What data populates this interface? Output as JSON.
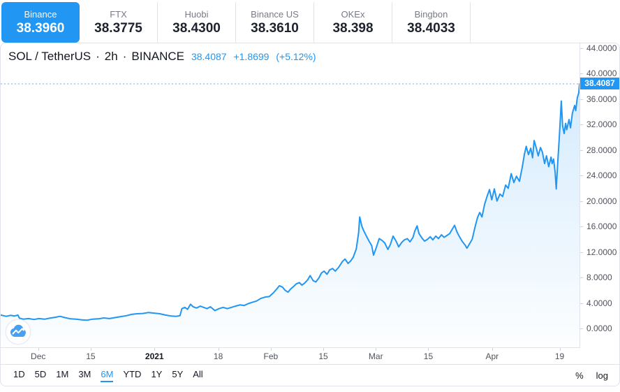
{
  "tabs": [
    {
      "name": "Binance",
      "value": "38.3960",
      "active": true
    },
    {
      "name": "FTX",
      "value": "38.3775",
      "active": false
    },
    {
      "name": "Huobi",
      "value": "38.4300",
      "active": false
    },
    {
      "name": "Binance US",
      "value": "38.3610",
      "active": false
    },
    {
      "name": "OKEx",
      "value": "38.398",
      "active": false
    },
    {
      "name": "Bingbon",
      "value": "38.4033",
      "active": false
    }
  ],
  "header": {
    "symbol": "SOL / TetherUS",
    "separator": "·",
    "interval": "2h",
    "exchange": "BINANCE",
    "price": "38.4087",
    "change": "+1.8699",
    "change_pct": "(+5.12%)"
  },
  "price_scale": {
    "badge": {
      "label": "38.4087",
      "price": 38.4087
    },
    "ticks": [
      {
        "label": "44.0000",
        "price": 44
      },
      {
        "label": "40.0000",
        "price": 40
      },
      {
        "label": "36.0000",
        "price": 36
      },
      {
        "label": "32.0000",
        "price": 32
      },
      {
        "label": "28.0000",
        "price": 28
      },
      {
        "label": "24.0000",
        "price": 24
      },
      {
        "label": "20.0000",
        "price": 20
      },
      {
        "label": "16.0000",
        "price": 16
      },
      {
        "label": "12.0000",
        "price": 12
      },
      {
        "label": "8.0000",
        "price": 8
      },
      {
        "label": "4.0000",
        "price": 4
      },
      {
        "label": "0.0000",
        "price": 0
      }
    ]
  },
  "time_scale": {
    "ticks": [
      {
        "label": "Dec",
        "day": 10,
        "bold": false
      },
      {
        "label": "15",
        "day": 24,
        "bold": false
      },
      {
        "label": "2021",
        "day": 41,
        "bold": true
      },
      {
        "label": "18",
        "day": 58,
        "bold": false
      },
      {
        "label": "Feb",
        "day": 72,
        "bold": false
      },
      {
        "label": "15",
        "day": 86,
        "bold": false
      },
      {
        "label": "Mar",
        "day": 100,
        "bold": false
      },
      {
        "label": "15",
        "day": 114,
        "bold": false
      },
      {
        "label": "Apr",
        "day": 131,
        "bold": false
      },
      {
        "label": "19",
        "day": 149,
        "bold": false
      }
    ]
  },
  "toolbar": {
    "ranges": [
      {
        "label": "1D",
        "active": false
      },
      {
        "label": "5D",
        "active": false
      },
      {
        "label": "1M",
        "active": false
      },
      {
        "label": "3M",
        "active": false
      },
      {
        "label": "6M",
        "active": true
      },
      {
        "label": "YTD",
        "active": false
      },
      {
        "label": "1Y",
        "active": false
      },
      {
        "label": "5Y",
        "active": false
      },
      {
        "label": "All",
        "active": false
      }
    ],
    "scale_modes": [
      "%",
      "log"
    ]
  },
  "colors": {
    "accent": "#2196f3",
    "line": "#2196f3",
    "fill_top": "rgba(33,150,243,0.20)",
    "fill_bottom": "rgba(33,150,243,0.01)",
    "dotted_price_line": "#6aabf2",
    "border": "#e0e3eb",
    "dark_text": "#131722",
    "gray_text": "#787b86",
    "axis_text": "#50535e"
  },
  "chart_data": {
    "type": "area",
    "title": "SOL / TetherUS · 2h · BINANCE",
    "x_unit": "days since 2020-11-21 (left edge of plot)",
    "x_range": [
      0,
      154.3
    ],
    "y_range": [
      0,
      44
    ],
    "grid": false,
    "last_price": 38.4087,
    "points": [
      [
        0,
        2.1
      ],
      [
        1.5,
        1.9
      ],
      [
        2.6,
        2.05
      ],
      [
        3.7,
        1.95
      ],
      [
        4.6,
        2.1
      ],
      [
        5,
        1.6
      ],
      [
        6.1,
        1.45
      ],
      [
        7.4,
        1.55
      ],
      [
        8.9,
        1.4
      ],
      [
        10.2,
        1.55
      ],
      [
        11.7,
        1.45
      ],
      [
        13,
        1.6
      ],
      [
        14.5,
        1.75
      ],
      [
        15.8,
        1.9
      ],
      [
        17.1,
        1.7
      ],
      [
        18.6,
        1.5
      ],
      [
        20.1,
        1.45
      ],
      [
        21.6,
        1.35
      ],
      [
        23,
        1.3
      ],
      [
        24.5,
        1.45
      ],
      [
        26,
        1.5
      ],
      [
        27.5,
        1.65
      ],
      [
        29,
        1.55
      ],
      [
        30.5,
        1.7
      ],
      [
        32,
        1.85
      ],
      [
        33.5,
        2.0
      ],
      [
        34.9,
        2.2
      ],
      [
        36.4,
        2.3
      ],
      [
        37.9,
        2.35
      ],
      [
        39.4,
        2.5
      ],
      [
        40.9,
        2.4
      ],
      [
        42.4,
        2.3
      ],
      [
        43.9,
        2.1
      ],
      [
        45.4,
        1.95
      ],
      [
        46.8,
        1.9
      ],
      [
        47.8,
        2.0
      ],
      [
        48.3,
        3.1
      ],
      [
        49.1,
        3.3
      ],
      [
        49.8,
        3.0
      ],
      [
        50.6,
        3.8
      ],
      [
        51.3,
        3.4
      ],
      [
        52.2,
        3.2
      ],
      [
        53.2,
        3.5
      ],
      [
        54.1,
        3.3
      ],
      [
        55,
        3.1
      ],
      [
        55.9,
        3.4
      ],
      [
        57.1,
        2.8
      ],
      [
        58.2,
        3.1
      ],
      [
        59.3,
        3.3
      ],
      [
        60.4,
        3.1
      ],
      [
        61.5,
        3.3
      ],
      [
        62.6,
        3.5
      ],
      [
        63.8,
        3.7
      ],
      [
        64.9,
        3.6
      ],
      [
        66,
        3.9
      ],
      [
        67.1,
        4.1
      ],
      [
        68.2,
        4.3
      ],
      [
        69.3,
        4.7
      ],
      [
        70.4,
        4.9
      ],
      [
        71.6,
        5.0
      ],
      [
        72.7,
        5.6
      ],
      [
        73.6,
        6.2
      ],
      [
        74.3,
        6.7
      ],
      [
        75.1,
        6.5
      ],
      [
        75.8,
        6.0
      ],
      [
        76.6,
        5.7
      ],
      [
        77.3,
        6.2
      ],
      [
        78.1,
        6.6
      ],
      [
        78.8,
        7.0
      ],
      [
        79.6,
        7.2
      ],
      [
        80.3,
        6.8
      ],
      [
        81,
        7.1
      ],
      [
        81.8,
        7.6
      ],
      [
        82.5,
        8.3
      ],
      [
        83.3,
        7.5
      ],
      [
        84,
        7.3
      ],
      [
        84.8,
        7.9
      ],
      [
        85.5,
        8.7
      ],
      [
        86.2,
        9.0
      ],
      [
        87,
        8.5
      ],
      [
        87.7,
        9.2
      ],
      [
        88.5,
        9.4
      ],
      [
        89.2,
        9.0
      ],
      [
        90.1,
        9.6
      ],
      [
        91.1,
        10.5
      ],
      [
        91.8,
        10.9
      ],
      [
        92.6,
        10.2
      ],
      [
        93.3,
        10.6
      ],
      [
        94,
        11.2
      ],
      [
        94.8,
        12.5
      ],
      [
        95.4,
        15.0
      ],
      [
        95.7,
        17.5
      ],
      [
        96.3,
        16.0
      ],
      [
        96.8,
        15.3
      ],
      [
        97.4,
        14.6
      ],
      [
        98.1,
        13.8
      ],
      [
        98.9,
        13.0
      ],
      [
        99.4,
        11.5
      ],
      [
        100.2,
        12.8
      ],
      [
        100.9,
        14.1
      ],
      [
        101.7,
        13.8
      ],
      [
        102.4,
        13.4
      ],
      [
        103.2,
        12.4
      ],
      [
        103.9,
        13.2
      ],
      [
        104.6,
        14.5
      ],
      [
        105.4,
        13.7
      ],
      [
        106.1,
        12.8
      ],
      [
        106.9,
        13.5
      ],
      [
        107.6,
        13.9
      ],
      [
        108.4,
        14.1
      ],
      [
        109.1,
        13.6
      ],
      [
        109.9,
        14.3
      ],
      [
        110.4,
        15.3
      ],
      [
        111,
        16.1
      ],
      [
        111.5,
        14.9
      ],
      [
        112.3,
        14.2
      ],
      [
        113,
        13.7
      ],
      [
        113.8,
        14.0
      ],
      [
        114.5,
        14.4
      ],
      [
        115.2,
        13.9
      ],
      [
        116,
        14.5
      ],
      [
        116.7,
        14.1
      ],
      [
        117.5,
        14.7
      ],
      [
        118.2,
        14.3
      ],
      [
        119,
        14.6
      ],
      [
        119.7,
        14.9
      ],
      [
        120.4,
        15.6
      ],
      [
        121,
        16.2
      ],
      [
        121.6,
        15.2
      ],
      [
        122.3,
        14.4
      ],
      [
        123,
        13.7
      ],
      [
        123.8,
        13.1
      ],
      [
        124.3,
        12.6
      ],
      [
        124.9,
        13.2
      ],
      [
        125.7,
        14.0
      ],
      [
        126.4,
        15.8
      ],
      [
        127.1,
        17.4
      ],
      [
        127.7,
        18.2
      ],
      [
        128.3,
        17.5
      ],
      [
        129,
        19.5
      ],
      [
        129.7,
        20.8
      ],
      [
        130.3,
        21.8
      ],
      [
        130.9,
        20.2
      ],
      [
        131.6,
        21.9
      ],
      [
        132.3,
        20.0
      ],
      [
        133.1,
        21.1
      ],
      [
        133.8,
        20.7
      ],
      [
        134.6,
        22.5
      ],
      [
        135.3,
        22.0
      ],
      [
        136.1,
        24.3
      ],
      [
        136.8,
        22.9
      ],
      [
        137.5,
        23.9
      ],
      [
        138.3,
        23.1
      ],
      [
        139,
        25.2
      ],
      [
        139.6,
        27.3
      ],
      [
        140.1,
        28.6
      ],
      [
        140.7,
        27.3
      ],
      [
        141.3,
        28.3
      ],
      [
        141.8,
        26.8
      ],
      [
        142.2,
        29.5
      ],
      [
        142.8,
        28.3
      ],
      [
        143.3,
        27.1
      ],
      [
        143.9,
        28.4
      ],
      [
        144.4,
        27.7
      ],
      [
        145,
        25.9
      ],
      [
        145.5,
        27.1
      ],
      [
        146.1,
        25.4
      ],
      [
        146.7,
        26.9
      ],
      [
        147,
        25.9
      ],
      [
        147.4,
        26.6
      ],
      [
        147.8,
        24.5
      ],
      [
        148.1,
        21.9
      ],
      [
        148.5,
        26.0
      ],
      [
        148.9,
        29.9
      ],
      [
        149.3,
        34.0
      ],
      [
        149.45,
        35.7
      ],
      [
        149.8,
        31.8
      ],
      [
        150.2,
        30.6
      ],
      [
        150.6,
        32.2
      ],
      [
        150.9,
        31.2
      ],
      [
        151.5,
        32.8
      ],
      [
        151.9,
        31.5
      ],
      [
        152.4,
        33.8
      ],
      [
        153,
        35.0
      ],
      [
        153.3,
        34.2
      ],
      [
        153.7,
        36.2
      ],
      [
        154.1,
        37.0
      ],
      [
        154.3,
        38.4
      ]
    ]
  }
}
